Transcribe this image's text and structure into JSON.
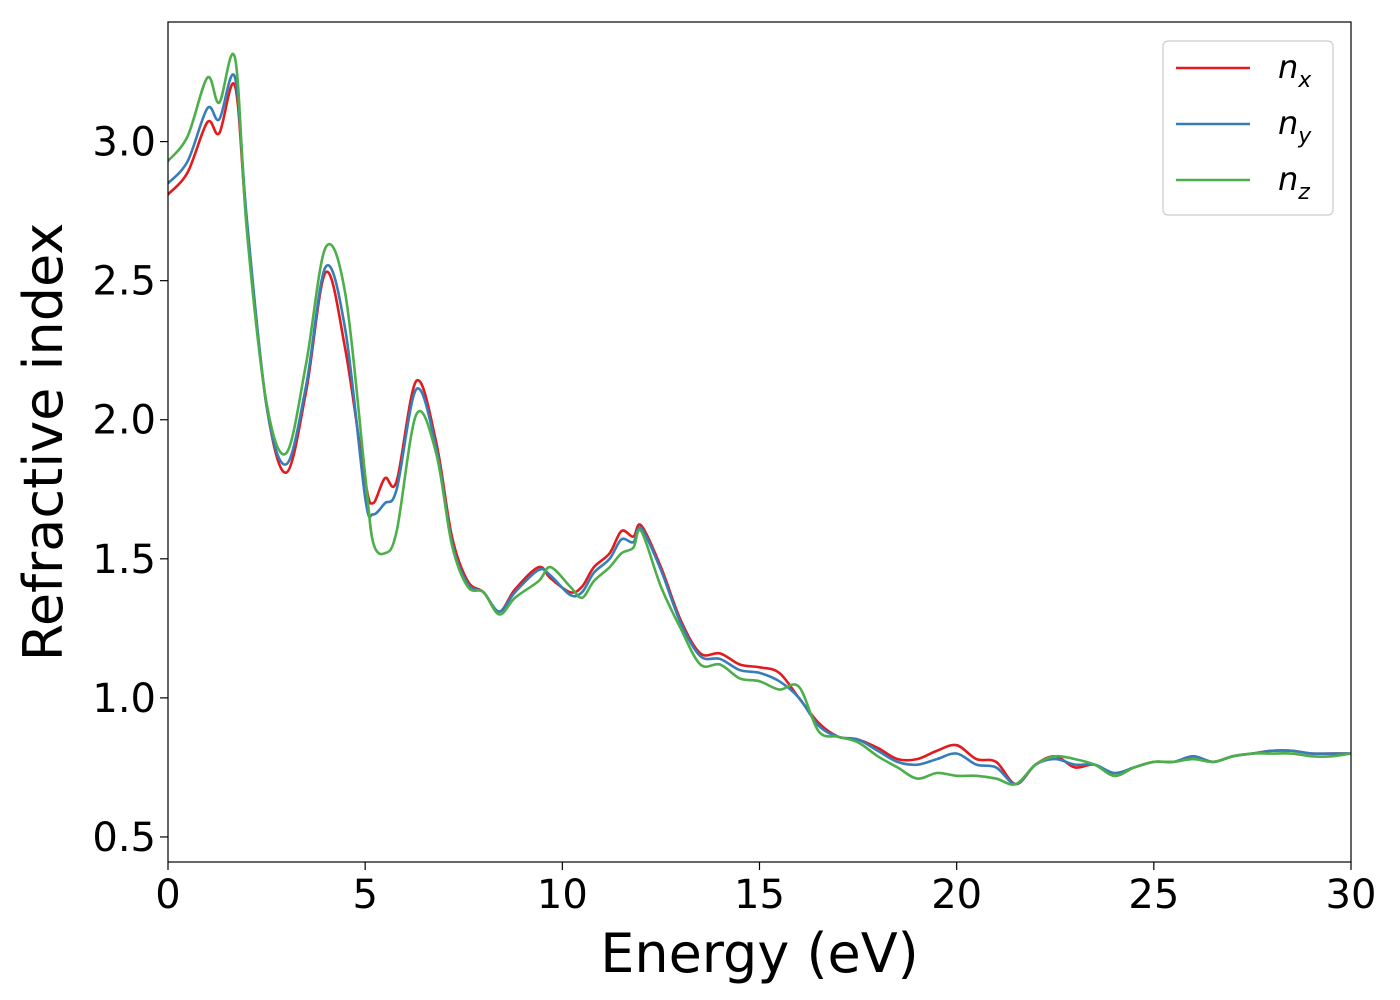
{
  "chart_data": {
    "type": "line",
    "xlabel": "Energy (eV)",
    "ylabel": "Refractive index",
    "xlim": [
      0,
      30
    ],
    "ylim": [
      0.41,
      3.43
    ],
    "xticks": [
      "0",
      "5",
      "10",
      "15",
      "20",
      "25",
      "30"
    ],
    "yticks": [
      "0.5",
      "1.0",
      "1.5",
      "2.0",
      "2.5",
      "3.0"
    ],
    "grid": false,
    "legend_position": "top-right",
    "x": [
      0,
      0.5,
      1.0,
      1.3,
      1.7,
      2.0,
      2.5,
      3.0,
      3.5,
      4.0,
      4.5,
      5.0,
      5.2,
      5.5,
      5.8,
      6.3,
      6.8,
      7.2,
      7.6,
      8.0,
      8.4,
      8.8,
      9.4,
      9.7,
      10.2,
      10.5,
      10.8,
      11.2,
      11.5,
      11.8,
      12.0,
      12.5,
      13.0,
      13.5,
      14.0,
      14.5,
      15.0,
      15.5,
      16.0,
      16.5,
      17.0,
      17.5,
      18.0,
      18.5,
      19.0,
      19.5,
      20.0,
      20.5,
      21.0,
      21.5,
      22.0,
      22.5,
      23.0,
      23.5,
      24.0,
      24.5,
      25.0,
      25.5,
      26.0,
      26.5,
      27.0,
      27.5,
      28.0,
      28.5,
      29.0,
      29.5,
      30.0
    ],
    "series": [
      {
        "name": "x",
        "color": "#e41a1c",
        "values": [
          2.81,
          2.89,
          3.07,
          3.03,
          3.2,
          2.7,
          2.05,
          1.81,
          2.1,
          2.53,
          2.25,
          1.78,
          1.7,
          1.79,
          1.78,
          2.14,
          1.92,
          1.58,
          1.42,
          1.38,
          1.31,
          1.39,
          1.47,
          1.43,
          1.38,
          1.4,
          1.47,
          1.52,
          1.6,
          1.58,
          1.62,
          1.47,
          1.28,
          1.16,
          1.16,
          1.12,
          1.11,
          1.09,
          1.0,
          0.91,
          0.86,
          0.85,
          0.82,
          0.78,
          0.78,
          0.81,
          0.83,
          0.78,
          0.77,
          0.69,
          0.76,
          0.79,
          0.75,
          0.76,
          0.72,
          0.75,
          0.77,
          0.77,
          0.79,
          0.77,
          0.79,
          0.8,
          0.81,
          0.81,
          0.8,
          0.8,
          0.8
        ]
      },
      {
        "name": "y",
        "color": "#377eb8",
        "values": [
          2.85,
          2.93,
          3.12,
          3.08,
          3.23,
          2.72,
          2.05,
          1.84,
          2.12,
          2.55,
          2.32,
          1.72,
          1.66,
          1.7,
          1.75,
          2.11,
          1.9,
          1.56,
          1.41,
          1.38,
          1.31,
          1.38,
          1.46,
          1.44,
          1.37,
          1.38,
          1.45,
          1.5,
          1.57,
          1.56,
          1.61,
          1.46,
          1.27,
          1.15,
          1.14,
          1.1,
          1.09,
          1.06,
          1.0,
          0.9,
          0.86,
          0.85,
          0.81,
          0.77,
          0.76,
          0.78,
          0.8,
          0.76,
          0.75,
          0.69,
          0.76,
          0.78,
          0.76,
          0.76,
          0.73,
          0.75,
          0.77,
          0.77,
          0.79,
          0.77,
          0.79,
          0.8,
          0.81,
          0.81,
          0.8,
          0.8,
          0.8
        ]
      },
      {
        "name": "z",
        "color": "#4daf4a",
        "values": [
          2.93,
          3.02,
          3.23,
          3.14,
          3.3,
          2.68,
          2.06,
          1.88,
          2.2,
          2.62,
          2.45,
          1.8,
          1.56,
          1.52,
          1.6,
          2.02,
          1.88,
          1.55,
          1.4,
          1.38,
          1.3,
          1.36,
          1.42,
          1.47,
          1.4,
          1.36,
          1.42,
          1.47,
          1.52,
          1.54,
          1.6,
          1.4,
          1.25,
          1.12,
          1.12,
          1.07,
          1.06,
          1.03,
          1.04,
          0.88,
          0.86,
          0.84,
          0.79,
          0.75,
          0.71,
          0.73,
          0.72,
          0.72,
          0.71,
          0.69,
          0.76,
          0.79,
          0.78,
          0.76,
          0.72,
          0.75,
          0.77,
          0.77,
          0.78,
          0.77,
          0.79,
          0.8,
          0.8,
          0.8,
          0.79,
          0.79,
          0.8
        ]
      }
    ]
  }
}
